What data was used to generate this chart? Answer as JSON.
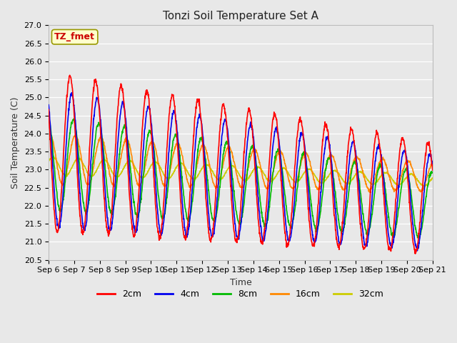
{
  "title": "Tonzi Soil Temperature Set A",
  "xlabel": "Time",
  "ylabel": "Soil Temperature (C)",
  "ylim": [
    20.5,
    27.0
  ],
  "n_days": 15,
  "annotation_text": "TZ_fmet",
  "annotation_bg": "#ffffcc",
  "annotation_border": "#aaaaaa",
  "annotation_text_color": "#cc0000",
  "fig_bg_color": "#e8e8e8",
  "plot_bg_color": "#e8e8e8",
  "grid_color": "#ffffff",
  "line_colors": {
    "2cm": "#ff0000",
    "4cm": "#0000ee",
    "8cm": "#00bb00",
    "16cm": "#ff8800",
    "32cm": "#cccc00"
  },
  "x_tick_labels": [
    "Sep 6",
    "Sep 7",
    "Sep 8",
    "Sep 9",
    "Sep 10",
    "Sep 11",
    "Sep 12",
    "Sep 13",
    "Sep 14",
    "Sep 15",
    "Sep 16",
    "Sep 17",
    "Sep 18",
    "Sep 19",
    "Sep 20",
    "Sep 21"
  ],
  "tick_fontsize": 8,
  "title_fontsize": 11,
  "label_fontsize": 9,
  "legend_fontsize": 9,
  "linewidth": 1.2,
  "annotation_fontsize": 9
}
